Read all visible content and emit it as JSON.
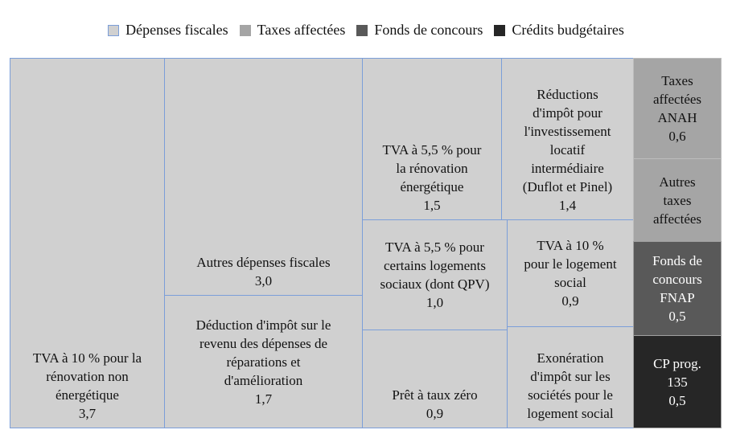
{
  "chart_data": {
    "type": "treemap",
    "legend": {
      "placement": "top",
      "entries": [
        {
          "name": "Dépenses fiscales",
          "color": "#d0d0d0"
        },
        {
          "name": "Taxes affectées",
          "color": "#a5a5a5"
        },
        {
          "name": "Fonds de concours",
          "color": "#595959"
        },
        {
          "name": "Crédits budgétaires",
          "color": "#262626"
        }
      ]
    },
    "items": [
      {
        "category": "Dépenses fiscales",
        "lines": [
          "TVA à 10 % pour la",
          "rénovation non",
          "énergétique"
        ],
        "value": "3,7"
      },
      {
        "category": "Dépenses fiscales",
        "lines": [
          "Autres dépenses fiscales"
        ],
        "value": "3,0"
      },
      {
        "category": "Dépenses fiscales",
        "lines": [
          "Déduction d'impôt sur le",
          "revenu des dépenses de",
          "réparations et",
          "d'amélioration"
        ],
        "value": "1,7"
      },
      {
        "category": "Dépenses fiscales",
        "lines": [
          "TVA à 5,5 % pour",
          "la rénovation",
          "énergétique"
        ],
        "value": "1,5"
      },
      {
        "category": "Dépenses fiscales",
        "lines": [
          "Réductions",
          "d'impôt pour",
          "l'investissement",
          "locatif",
          "intermédiaire",
          "(Duflot et Pinel)"
        ],
        "value": "1,4"
      },
      {
        "category": "Dépenses fiscales",
        "lines": [
          "TVA à 5,5 % pour",
          "certains logements",
          "sociaux (dont QPV)"
        ],
        "value": "1,0"
      },
      {
        "category": "Dépenses fiscales",
        "lines": [
          "Prêt à taux zéro"
        ],
        "value": "0,9"
      },
      {
        "category": "Dépenses fiscales",
        "lines": [
          "TVA à 10 %",
          "pour le logement",
          "social"
        ],
        "value": "0,9"
      },
      {
        "category": "Dépenses fiscales",
        "lines": [
          "Exonération",
          "d'impôt sur les",
          "sociétés pour le",
          "logement social"
        ],
        "value": null
      },
      {
        "category": "Taxes affectées",
        "lines": [
          "Taxes",
          "affectées",
          "ANAH"
        ],
        "value": "0,6"
      },
      {
        "category": "Taxes affectées",
        "lines": [
          "Autres",
          "taxes",
          "affectées"
        ],
        "value": null
      },
      {
        "category": "Fonds de concours",
        "lines": [
          "Fonds de",
          "concours",
          "FNAP"
        ],
        "value": "0,5"
      },
      {
        "category": "Crédits budgétaires",
        "lines": [
          "CP prog.",
          "135"
        ],
        "value": "0,5"
      }
    ]
  }
}
